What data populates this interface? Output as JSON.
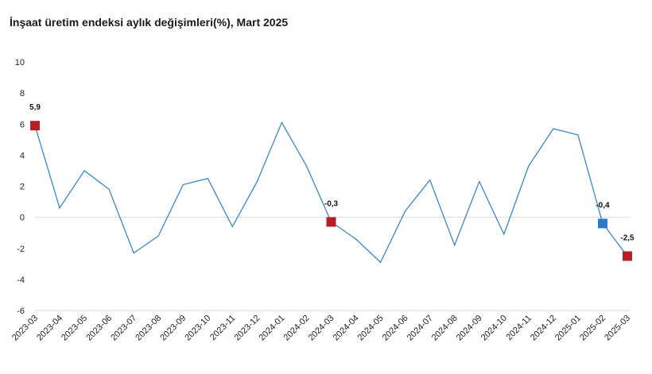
{
  "title": "İnşaat üretim endeksi aylık değişimleri(%), Mart 2025",
  "colors": {
    "line": "#3a86c8",
    "marker_red": "#b52025",
    "marker_blue": "#2f7ac0",
    "axis": "#d9d9d9"
  },
  "chart_data": {
    "type": "line",
    "title": "İnşaat üretim endeksi aylık değişimleri(%), Mart 2025",
    "xlabel": "",
    "ylabel": "",
    "ylim": [
      -6,
      10
    ],
    "yticks": [
      10,
      8,
      6,
      4,
      2,
      0,
      -2,
      -4,
      -6
    ],
    "ytick_labels": [
      "10",
      "8",
      "6",
      "4",
      "2",
      "0",
      "-2",
      "-4",
      "-6"
    ],
    "grid": false,
    "categories": [
      "2023-03",
      "2023-04",
      "2023-05",
      "2023-06",
      "2023-07",
      "2023-08",
      "2023-09",
      "2023-10",
      "2023-11",
      "2023-12",
      "2024-01",
      "2024-02",
      "2024-03",
      "2024-04",
      "2024-05",
      "2024-06",
      "2024-07",
      "2024-08",
      "2024-09",
      "2024-10",
      "2024-11",
      "2024-12",
      "2025-01",
      "2025-02",
      "2025-03"
    ],
    "series": [
      {
        "values": [
          5.9,
          0.6,
          3.0,
          1.8,
          -2.3,
          -1.2,
          2.1,
          2.5,
          -0.6,
          2.3,
          6.1,
          3.3,
          -0.3,
          -1.4,
          -2.9,
          0.4,
          2.4,
          -1.8,
          2.3,
          -1.1,
          3.3,
          5.7,
          5.3,
          -0.4,
          -2.5
        ]
      }
    ],
    "highlights": [
      {
        "category": "2023-03",
        "value": 5.9,
        "label": "5,9",
        "color": "red"
      },
      {
        "category": "2024-03",
        "value": -0.3,
        "label": "-0,3",
        "color": "red"
      },
      {
        "category": "2025-02",
        "value": -0.4,
        "label": "-0,4",
        "color": "blue"
      },
      {
        "category": "2025-03",
        "value": -2.5,
        "label": "-2,5",
        "color": "red"
      }
    ]
  }
}
